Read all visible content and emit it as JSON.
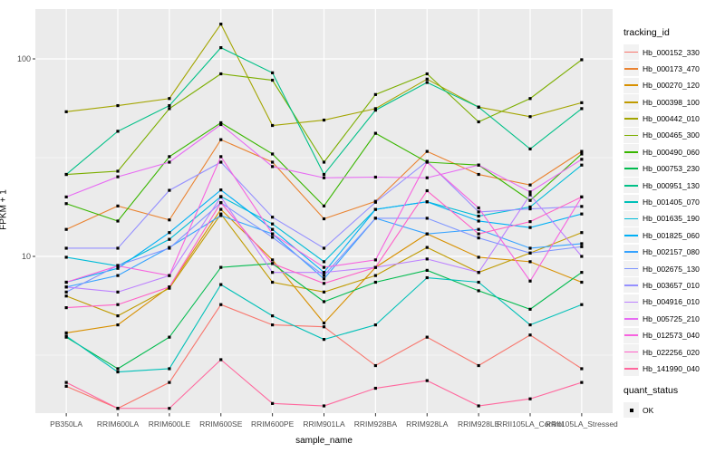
{
  "figure": {
    "panel_bg": "#EBEBEB",
    "grid_color": "#FFFFFF",
    "tick_label_color": "#4D4D4D",
    "legend": {
      "tracking_title": "tracking_id",
      "quant_title": "quant_status",
      "quant_items": [
        {
          "label": "OK",
          "marker": "black-square"
        }
      ]
    }
  },
  "chart_data": {
    "type": "line",
    "title": "",
    "xlabel": "sample_name",
    "ylabel": "FPKM + 1",
    "y_scale": "log10",
    "ylim": [
      1.6,
      180
    ],
    "y_major_ticks": [
      100,
      10
    ],
    "y_minor_ticks": [
      31.62,
      3.162
    ],
    "grid": true,
    "legend_position": "right",
    "marker": "filled-black-square",
    "categories": [
      "PB350LA",
      "RRIM600LA",
      "RRIM600LE",
      "RRIM600SE",
      "RRIM600PE",
      "RRIM901LA",
      "RRIM928BA",
      "RRIM928LA",
      "RRIM928LE",
      "RRII105LA_Control",
      "RRII105LA_Stressed"
    ],
    "series": [
      {
        "name": "Hb_000152_330",
        "color": "#F8766D",
        "values": [
          2.2,
          1.7,
          2.3,
          5.7,
          4.5,
          4.4,
          2.8,
          3.9,
          2.8,
          4.0,
          2.7
        ]
      },
      {
        "name": "Hb_000173_470",
        "color": "#EA8331",
        "values": [
          13.7,
          18,
          15.3,
          39,
          30,
          15.5,
          19,
          34,
          26,
          23,
          34
        ]
      },
      {
        "name": "Hb_000270_120",
        "color": "#D89000",
        "values": [
          4.1,
          4.5,
          7.0,
          17.3,
          9.6,
          4.6,
          8.8,
          13.0,
          9.9,
          9.4,
          7.4
        ]
      },
      {
        "name": "Hb_000398_100",
        "color": "#C09B00",
        "values": [
          6.3,
          5.0,
          6.9,
          16.4,
          7.4,
          6.6,
          8.0,
          11.1,
          8.3,
          10.4,
          13.2
        ]
      },
      {
        "name": "Hb_000442_010",
        "color": "#A3A500",
        "values": [
          54,
          58,
          63,
          150,
          46,
          49,
          56,
          79,
          57,
          51,
          60
        ]
      },
      {
        "name": "Hb_000465_300",
        "color": "#7CAE00",
        "values": [
          26,
          27,
          56,
          84,
          78,
          30,
          66,
          84,
          48,
          63,
          99
        ]
      },
      {
        "name": "Hb_000490_060",
        "color": "#39B600",
        "values": [
          18.5,
          15.1,
          32,
          47.5,
          33,
          18,
          42,
          30,
          29,
          19.2,
          33
        ]
      },
      {
        "name": "Hb_000753_230",
        "color": "#00BB4E",
        "values": [
          3.9,
          2.7,
          3.9,
          8.8,
          9.2,
          5.9,
          7.4,
          8.5,
          6.7,
          5.4,
          8.3
        ]
      },
      {
        "name": "Hb_000951_130",
        "color": "#00C087",
        "values": [
          26,
          43,
          58,
          114,
          85,
          26,
          55,
          76,
          57,
          35,
          56
        ]
      },
      {
        "name": "Hb_001405_070",
        "color": "#00C0B8",
        "values": [
          3.95,
          2.6,
          2.7,
          7.2,
          5.0,
          3.8,
          4.5,
          7.8,
          7.4,
          4.5,
          5.7
        ]
      },
      {
        "name": "Hb_001635_190",
        "color": "#00BCD8",
        "values": [
          9.9,
          8.95,
          12.2,
          20.1,
          14.6,
          9.4,
          17.3,
          18.9,
          16.0,
          17.8,
          29
        ]
      },
      {
        "name": "Hb_001825_060",
        "color": "#00B0F6",
        "values": [
          7.4,
          8.7,
          13.2,
          21.7,
          13.7,
          8.3,
          17.3,
          18.9,
          15.1,
          14.0,
          16.4
        ]
      },
      {
        "name": "Hb_002157_080",
        "color": "#35A2FF",
        "values": [
          7.0,
          8.0,
          11.1,
          16.1,
          13.0,
          7.7,
          15.6,
          13.0,
          13.7,
          11.0,
          11.6
        ]
      },
      {
        "name": "Hb_002675_130",
        "color": "#7F96FF",
        "values": [
          6.6,
          9.0,
          11.0,
          18.7,
          12.5,
          8.0,
          15.6,
          15.6,
          12.4,
          10.4,
          11.2
        ]
      },
      {
        "name": "Hb_003657_010",
        "color": "#9590FF",
        "values": [
          11,
          11,
          21.6,
          30,
          15.8,
          11,
          18.8,
          30.3,
          16.8,
          17.4,
          17.9
        ]
      },
      {
        "name": "Hb_004916_010",
        "color": "#BC81FF",
        "values": [
          7.0,
          6.6,
          8.0,
          20,
          8.3,
          8.3,
          8.8,
          9.7,
          8.3,
          20.5,
          10.0
        ]
      },
      {
        "name": "Hb_005725_210",
        "color": "#E76BF3",
        "values": [
          20,
          25.3,
          30,
          46.5,
          28.5,
          25,
          25.2,
          25,
          29,
          21.2,
          31
        ]
      },
      {
        "name": "Hb_012573_040",
        "color": "#F763DF",
        "values": [
          7.4,
          8.95,
          8.0,
          32,
          13.0,
          8.8,
          9.6,
          30,
          17.6,
          7.5,
          20
        ]
      },
      {
        "name": "Hb_022256_020",
        "color": "#FF61C7",
        "values": [
          5.5,
          5.7,
          7.0,
          18.7,
          9.2,
          7.3,
          8.8,
          21.5,
          13.0,
          15.0,
          20
        ]
      },
      {
        "name": "Hb_141990_040",
        "color": "#FF689E",
        "values": [
          2.3,
          1.7,
          1.7,
          3.0,
          1.8,
          1.75,
          2.15,
          2.35,
          1.75,
          1.9,
          2.3
        ]
      }
    ]
  }
}
